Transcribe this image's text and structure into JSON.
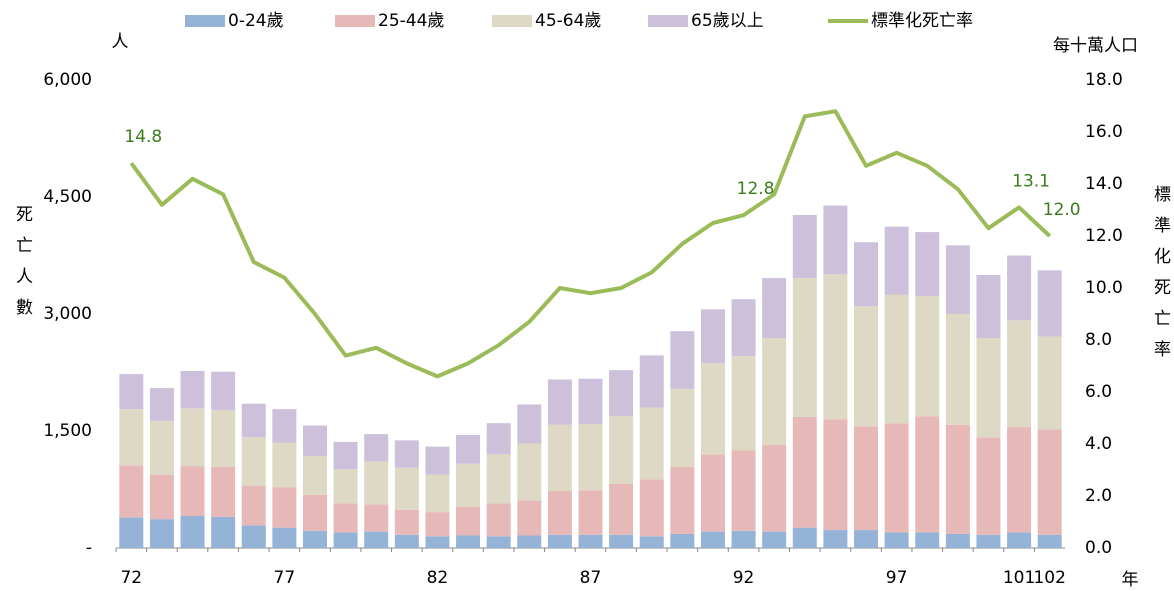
{
  "chart_data": {
    "type": "bar",
    "stacked": true,
    "y_unit_label": "人",
    "y2_unit_label": "每十萬人口",
    "ylabel": "死亡人數",
    "y2label": "標準化死亡率",
    "xlabel": "年",
    "categories": [
      "72",
      null,
      null,
      null,
      null,
      "77",
      null,
      null,
      null,
      null,
      "82",
      null,
      null,
      null,
      null,
      "87",
      null,
      null,
      null,
      null,
      "92",
      null,
      null,
      null,
      null,
      "97",
      null,
      null,
      null,
      "101",
      "102"
    ],
    "series": [
      {
        "name": "0-24歲",
        "color": "#95b3d7",
        "values": [
          390,
          370,
          410,
          400,
          290,
          260,
          220,
          200,
          210,
          170,
          150,
          160,
          150,
          160,
          170,
          170,
          170,
          150,
          180,
          210,
          220,
          210,
          260,
          230,
          230,
          200,
          200,
          180,
          170,
          200,
          170
        ]
      },
      {
        "name": "25-44歲",
        "color": "#e6b9b8",
        "values": [
          670,
          570,
          640,
          640,
          510,
          520,
          460,
          370,
          350,
          320,
          310,
          370,
          420,
          450,
          560,
          570,
          650,
          730,
          860,
          990,
          1030,
          1110,
          1420,
          1420,
          1330,
          1400,
          1490,
          1400,
          1250,
          1350,
          1350
        ]
      },
      {
        "name": "45-64歲",
        "color": "#ddd9c4",
        "values": [
          720,
          690,
          740,
          730,
          620,
          570,
          500,
          440,
          550,
          540,
          480,
          550,
          630,
          730,
          850,
          850,
          870,
          920,
          1000,
          1170,
          1210,
          1370,
          1780,
          1860,
          1540,
          1650,
          1540,
          1420,
          1270,
          1370,
          1190
        ]
      },
      {
        "name": "65歲以上",
        "color": "#ccc0da",
        "values": [
          450,
          420,
          480,
          490,
          430,
          430,
          390,
          350,
          350,
          350,
          360,
          370,
          400,
          500,
          580,
          580,
          590,
          670,
          740,
          690,
          730,
          770,
          810,
          880,
          820,
          870,
          820,
          880,
          810,
          830,
          850
        ]
      },
      {
        "name": "標準化死亡率",
        "type": "line",
        "axis": "y2",
        "color": "#9bbb59",
        "values": [
          14.8,
          13.2,
          14.2,
          13.6,
          11.0,
          10.4,
          9.0,
          7.4,
          7.7,
          7.1,
          6.6,
          7.1,
          7.8,
          8.7,
          10.0,
          9.8,
          10.0,
          10.6,
          11.7,
          12.5,
          12.8,
          13.6,
          16.6,
          16.8,
          14.7,
          15.2,
          14.7,
          13.8,
          12.3,
          13.1,
          12.0
        ],
        "value_labels": [
          "14.8",
          null,
          null,
          null,
          null,
          null,
          null,
          null,
          null,
          null,
          null,
          null,
          null,
          null,
          null,
          null,
          null,
          null,
          null,
          null,
          "12.8",
          null,
          null,
          null,
          null,
          null,
          null,
          null,
          null,
          "13.1",
          "12.0"
        ]
      }
    ],
    "ylim": [
      0,
      6000
    ],
    "yticks": [
      {
        "value": 0,
        "label": "-"
      },
      {
        "value": 1500,
        "label": "1,500"
      },
      {
        "value": 3000,
        "label": "3,000"
      },
      {
        "value": 4500,
        "label": "4,500"
      },
      {
        "value": 6000,
        "label": "6,000"
      }
    ],
    "y2lim": [
      0,
      18
    ],
    "y2ticks": [
      {
        "value": 0,
        "label": "0.0"
      },
      {
        "value": 2,
        "label": "2.0"
      },
      {
        "value": 4,
        "label": "4.0"
      },
      {
        "value": 6,
        "label": "6.0"
      },
      {
        "value": 8,
        "label": "8.0"
      },
      {
        "value": 10,
        "label": "10.0"
      },
      {
        "value": 12,
        "label": "12.0"
      },
      {
        "value": 14,
        "label": "14.0"
      },
      {
        "value": 16,
        "label": "16.0"
      },
      {
        "value": 18,
        "label": "18.0"
      }
    ],
    "label_color": "#3a7d1a"
  }
}
